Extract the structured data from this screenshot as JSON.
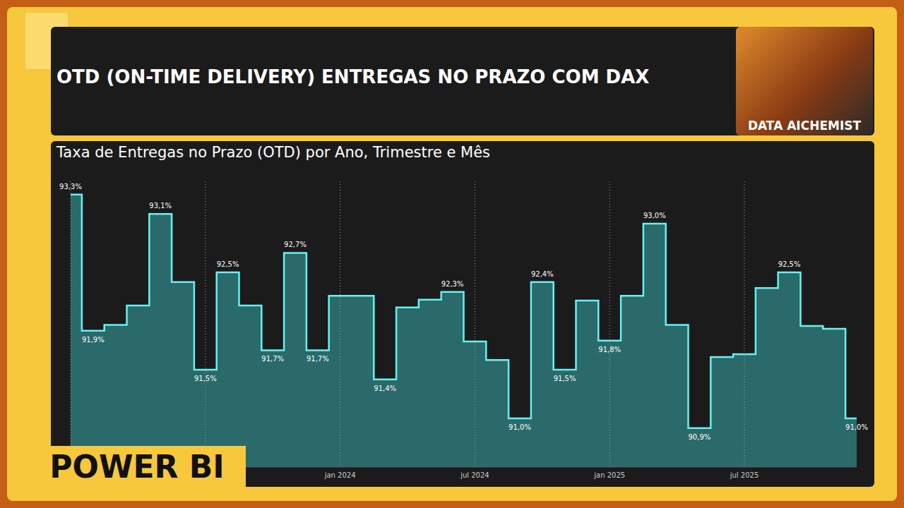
{
  "header": {
    "title": "OTD (ON-TIME DELIVERY) ENTREGAS NO PRAZO COM DAX",
    "badge": "DATA AICHEMIST",
    "tag": "POWER BI"
  },
  "chart_data": {
    "type": "step_area",
    "title": "Taxa de Entregas no Prazo (OTD) por Ano, Trimestre e Mês",
    "categories": [
      null,
      null,
      null,
      null,
      null,
      null,
      null,
      null,
      null,
      null,
      null,
      null,
      "jan 2024",
      null,
      null,
      null,
      null,
      null,
      "jul 2024",
      null,
      null,
      null,
      null,
      null,
      "jan 2025",
      null,
      null,
      null,
      null,
      null,
      "jul 2025",
      null,
      null,
      null,
      null,
      null
    ],
    "values": [
      93.3,
      91.9,
      91.96,
      92.16,
      93.1,
      92.4,
      91.5,
      92.5,
      92.16,
      91.7,
      92.7,
      91.7,
      92.26,
      92.26,
      91.4,
      92.14,
      92.22,
      92.3,
      91.79,
      91.6,
      91.0,
      92.4,
      91.5,
      92.21,
      91.8,
      92.26,
      93.0,
      91.96,
      90.9,
      91.63,
      91.66,
      92.34,
      92.5,
      91.95,
      91.92,
      91.0
    ],
    "value_labels": [
      "93,3%",
      "91,9%",
      null,
      null,
      "93,1%",
      null,
      "91,5%",
      "92,5%",
      null,
      "91,7%",
      "92,7%",
      "91,7%",
      null,
      null,
      "91,4%",
      null,
      null,
      "92,3%",
      null,
      null,
      "91,0%",
      "92,4%",
      "91,5%",
      null,
      "91,8%",
      null,
      "93,0%",
      null,
      "90,9%",
      null,
      null,
      null,
      "92,5%",
      null,
      null,
      "91,0%"
    ],
    "ylim": [
      90.5,
      93.45
    ],
    "data_labels": true,
    "tick_labels": "x",
    "grid": true,
    "color": "#2b6a6a",
    "line_color": "#66f2f2"
  }
}
